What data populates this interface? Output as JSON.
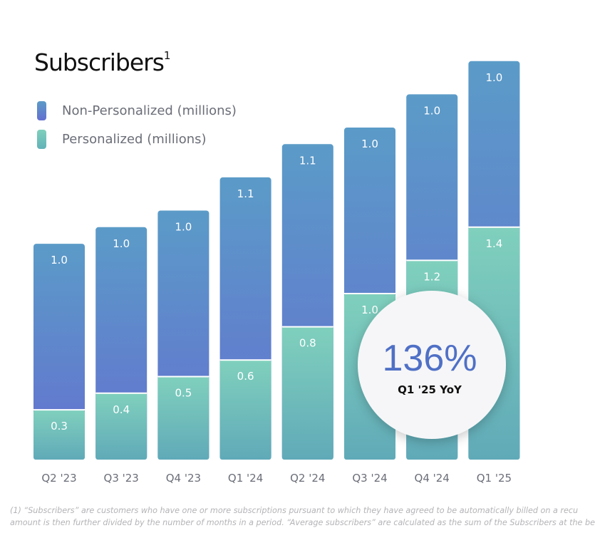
{
  "chart_data": {
    "type": "bar",
    "stacked": true,
    "title": "Subscribers",
    "title_footnote_marker": "1",
    "categories": [
      "Q2 '23",
      "Q3 '23",
      "Q4 '23",
      "Q1 '24",
      "Q2 '24",
      "Q3 '24",
      "Q4 '24",
      "Q1 '25"
    ],
    "series": [
      {
        "name": "Personalized (millions)",
        "values": [
          0.3,
          0.4,
          0.5,
          0.6,
          0.8,
          1.0,
          1.2,
          1.4
        ],
        "color": "#77c9b9"
      },
      {
        "name": "Non-Personalized (millions)",
        "values": [
          1.0,
          1.0,
          1.0,
          1.1,
          1.1,
          1.0,
          1.0,
          1.0
        ],
        "color": "#5f86cc"
      }
    ],
    "legend_position": "top-left",
    "grid": false,
    "ylim": [
      0,
      2.4
    ],
    "annotation": {
      "value": "136%",
      "label": "Q1 '25 YoY",
      "value_color": "#4f70c6"
    }
  },
  "footnotes": [
    "(1) “Subscribers” are customers who have one or more subscriptions pursuant to which they have agreed to be automatically billed on a recu",
    "amount is then further divided by the number of months in a period. “Average subscribers” are calculated as the sum of the Subscribers at the be"
  ]
}
